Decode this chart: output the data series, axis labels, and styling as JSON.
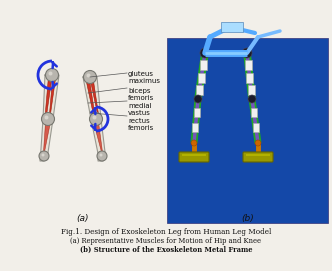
{
  "title_line1": "Fig.1. Design of Exoskeleton Leg from Human Leg Model",
  "title_line2": "(a) Representative Muscles for Motion of Hip and Knee",
  "title_line3": "(b) Structure of the Exoskeleton Metal Frame",
  "label_a": "(a)",
  "label_b": "(b)",
  "bg_color": "#f2efe9",
  "right_panel_bg": "#1448a8",
  "text_color": "#111111",
  "fig_width": 3.32,
  "fig_height": 2.71,
  "dpi": 100
}
